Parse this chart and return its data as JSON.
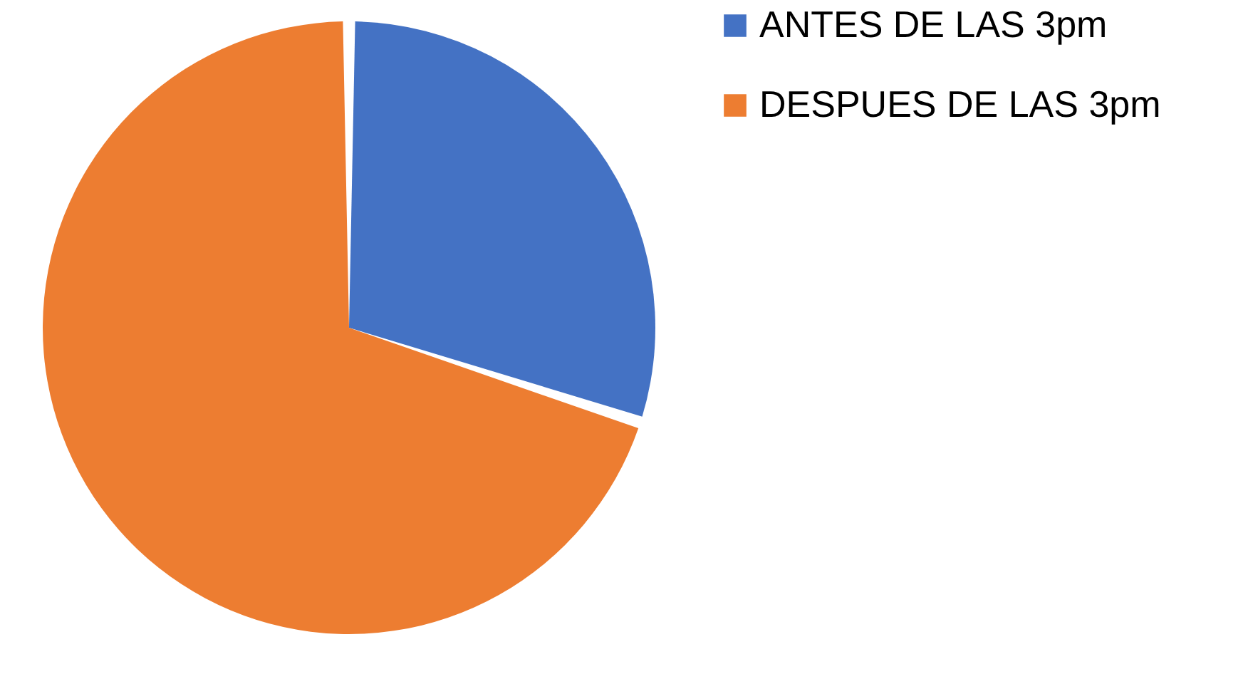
{
  "chart_data": {
    "type": "pie",
    "categories": [
      "ANTES DE LAS 3pm",
      "DESPUES DE LAS 3pm"
    ],
    "values": [
      30,
      70
    ],
    "colors": [
      "#4472c4",
      "#ed7d31"
    ],
    "legend": "right"
  }
}
